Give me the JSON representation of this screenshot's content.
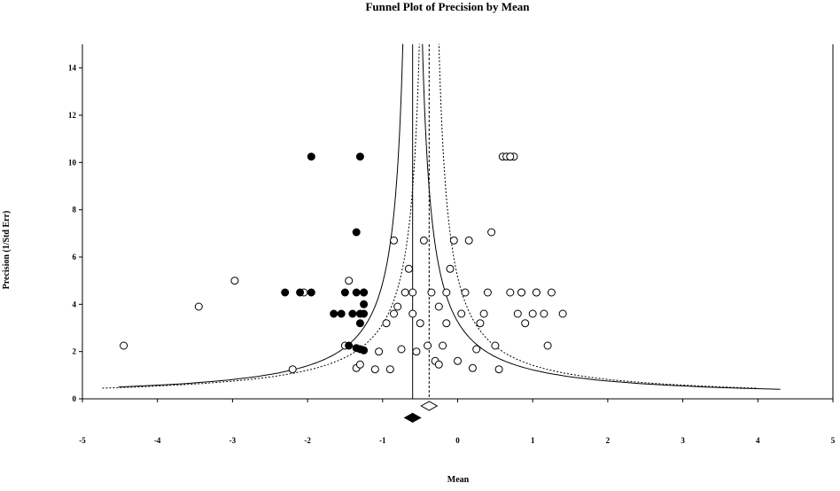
{
  "chart_data": {
    "type": "scatter",
    "title": "Funnel Plot of Precision by Mean",
    "xlabel": "Mean",
    "ylabel": "Precision (1/Std Err)",
    "xlim": [
      -5,
      5
    ],
    "ylim": [
      0,
      15
    ],
    "x_ticks": [
      "-5",
      "-4",
      "-3",
      "-2",
      "-1",
      "0",
      "1",
      "2",
      "3",
      "4",
      "5"
    ],
    "y_ticks": [
      "0",
      "2",
      "4",
      "6",
      "8",
      "10",
      "12",
      "14"
    ],
    "grid": false,
    "pooled_mean": -0.6,
    "adjusted_mean": -0.38,
    "colors": {
      "observed": "#ffffff",
      "imputed": "#000000",
      "stroke": "#000000"
    },
    "series": [
      {
        "values": [
          [
            -4.45,
            2.25
          ],
          [
            -3.45,
            3.9
          ],
          [
            -2.97,
            5.0
          ],
          [
            -2.2,
            1.25
          ],
          [
            -2.05,
            4.5
          ],
          [
            -1.5,
            2.25
          ],
          [
            -1.45,
            5.0
          ],
          [
            -1.35,
            1.3
          ],
          [
            -1.3,
            1.45
          ],
          [
            -1.25,
            4.5
          ],
          [
            -1.1,
            1.25
          ],
          [
            -1.05,
            2.0
          ],
          [
            -0.9,
            1.25
          ],
          [
            -0.95,
            3.2
          ],
          [
            -0.85,
            3.6
          ],
          [
            -0.85,
            6.7
          ],
          [
            -0.8,
            3.9
          ],
          [
            -0.75,
            2.1
          ],
          [
            -0.7,
            4.5
          ],
          [
            -0.65,
            5.5
          ],
          [
            -0.6,
            3.6
          ],
          [
            -0.6,
            4.5
          ],
          [
            -0.55,
            2.0
          ],
          [
            -0.5,
            3.2
          ],
          [
            -0.45,
            6.7
          ],
          [
            -0.4,
            2.25
          ],
          [
            -0.35,
            4.5
          ],
          [
            -0.3,
            1.6
          ],
          [
            -0.25,
            1.45
          ],
          [
            -0.25,
            3.9
          ],
          [
            -0.2,
            2.25
          ],
          [
            -0.15,
            3.2
          ],
          [
            -0.15,
            4.5
          ],
          [
            -0.1,
            5.5
          ],
          [
            -0.05,
            6.7
          ],
          [
            0.0,
            1.6
          ],
          [
            0.05,
            3.6
          ],
          [
            0.1,
            4.5
          ],
          [
            0.15,
            6.7
          ],
          [
            0.2,
            1.3
          ],
          [
            0.25,
            2.1
          ],
          [
            0.3,
            3.2
          ],
          [
            0.35,
            3.6
          ],
          [
            0.4,
            4.5
          ],
          [
            0.45,
            7.05
          ],
          [
            0.5,
            2.25
          ],
          [
            0.55,
            1.25
          ],
          [
            0.6,
            10.25
          ],
          [
            0.65,
            10.25
          ],
          [
            0.7,
            10.25
          ],
          [
            0.75,
            10.25
          ],
          [
            0.8,
            3.6
          ],
          [
            0.85,
            4.5
          ],
          [
            0.9,
            3.2
          ],
          [
            1.0,
            3.6
          ],
          [
            1.05,
            4.5
          ],
          [
            1.15,
            3.6
          ],
          [
            1.2,
            2.25
          ],
          [
            1.25,
            4.5
          ],
          [
            1.4,
            3.6
          ],
          [
            0.7,
            10.25
          ],
          [
            0.7,
            4.5
          ],
          [
            0.85,
            4.5
          ],
          [
            1.05,
            4.5
          ]
        ]
      },
      {
        "values": [
          [
            -1.95,
            10.25
          ],
          [
            -1.3,
            10.25
          ],
          [
            -1.35,
            7.05
          ],
          [
            -2.3,
            4.5
          ],
          [
            -2.1,
            4.5
          ],
          [
            -1.95,
            4.5
          ],
          [
            -1.5,
            4.5
          ],
          [
            -1.35,
            4.5
          ],
          [
            -1.25,
            4.5
          ],
          [
            -1.65,
            3.6
          ],
          [
            -1.55,
            3.6
          ],
          [
            -1.4,
            3.6
          ],
          [
            -1.3,
            3.6
          ],
          [
            -1.25,
            3.6
          ],
          [
            -1.25,
            4.0
          ],
          [
            -1.3,
            3.2
          ],
          [
            -1.45,
            2.25
          ],
          [
            -1.35,
            2.15
          ],
          [
            -1.3,
            2.1
          ],
          [
            -1.25,
            2.05
          ]
        ]
      }
    ],
    "summary_diamonds": [
      {
        "x": -0.6,
        "y": -0.8,
        "fill": "#000000"
      },
      {
        "x": -0.38,
        "y": -0.3,
        "fill": "#ffffff"
      }
    ]
  }
}
